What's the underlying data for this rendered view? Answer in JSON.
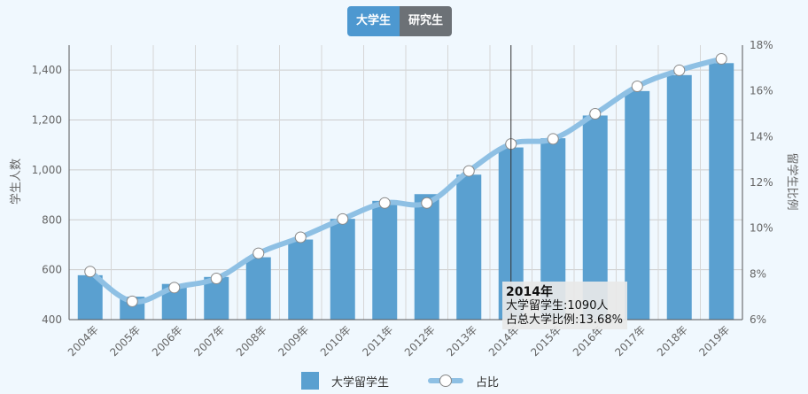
{
  "tabs": [
    {
      "label": "大学生",
      "active": true
    },
    {
      "label": "研究生",
      "active": false
    }
  ],
  "colors": {
    "bar": "#5aa0d0",
    "line": "#8ec0e4",
    "tab_active": "#4d98d0",
    "tab_inactive": "#6c7176"
  },
  "chart_data": {
    "type": "bar",
    "categories": [
      "2004年",
      "2005年",
      "2006年",
      "2007年",
      "2008年",
      "2009年",
      "2010年",
      "2011年",
      "2012年",
      "2013年",
      "2014年",
      "2015年",
      "2016年",
      "2017年",
      "2018年",
      "2019年"
    ],
    "series": [
      {
        "name": "大学留学生",
        "type": "bar",
        "axis": "left",
        "values": [
          578,
          492,
          543,
          571,
          650,
          721,
          804,
          876,
          903,
          981,
          1090,
          1127,
          1218,
          1316,
          1380,
          1428
        ]
      },
      {
        "name": "占比",
        "type": "line",
        "axis": "right",
        "values": [
          8.1,
          6.8,
          7.4,
          7.8,
          8.9,
          9.6,
          10.4,
          11.1,
          11.1,
          12.5,
          13.68,
          13.9,
          15.0,
          16.2,
          16.9,
          17.4
        ]
      }
    ],
    "ylabel": "学生人数",
    "y2label": "留学生比例",
    "ylim": [
      400,
      1500
    ],
    "y2lim": [
      6,
      18
    ],
    "yticks": [
      "400",
      "600",
      "800",
      "1,000",
      "1,200",
      "1,400"
    ],
    "y2ticks": [
      "6%",
      "8%",
      "10%",
      "12%",
      "14%",
      "16%",
      "18%"
    ],
    "grid": true,
    "legend_position": "bottom"
  },
  "legend": [
    {
      "label": "大学留学生"
    },
    {
      "label": "占比"
    }
  ],
  "tooltip": {
    "title": "2014年",
    "line1": "大学留学生:1090人",
    "line2": "占总大学比例:13.68%"
  }
}
